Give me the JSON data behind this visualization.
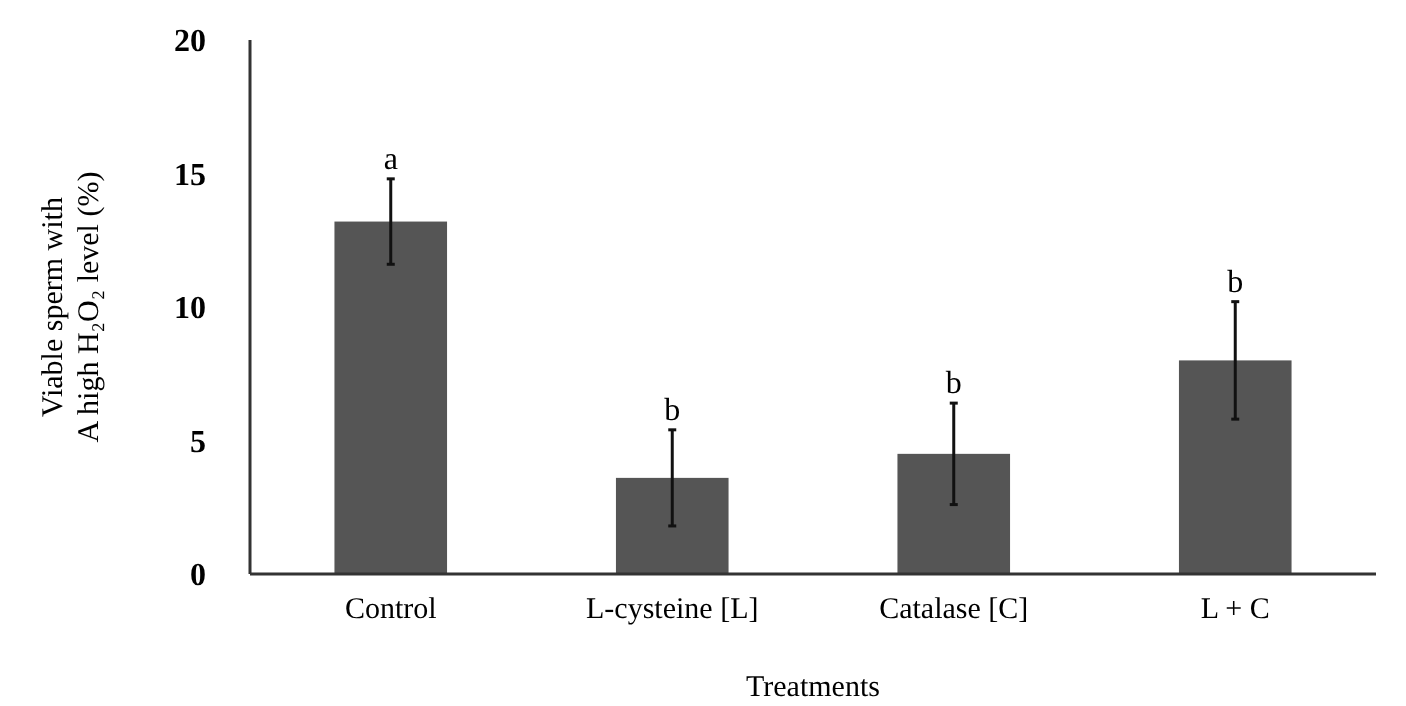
{
  "chart_data": {
    "type": "bar",
    "xlabel": "Treatments",
    "ylabel": "Viable sperm with\nA high H₂O₂ level (%)",
    "categories": [
      "Control",
      "L-cysteine [L]",
      "Catalase [C]",
      "L + C"
    ],
    "values": [
      13.2,
      3.6,
      4.5,
      8.0
    ],
    "errors": [
      1.6,
      1.8,
      1.9,
      2.2
    ],
    "color": "#555555",
    "ylim": [
      0,
      20
    ],
    "yticks": [
      0,
      5,
      10,
      15,
      20
    ],
    "grid": false,
    "annotations": [
      {
        "text": "a",
        "x": "Control",
        "y": 14.8
      },
      {
        "text": "b",
        "x": "L-cysteine [L]",
        "y": 5.4
      },
      {
        "text": "b",
        "x": "Catalase [C]",
        "y": 6.4
      },
      {
        "text": "b",
        "x": "L + C",
        "y": 10.2
      }
    ]
  }
}
